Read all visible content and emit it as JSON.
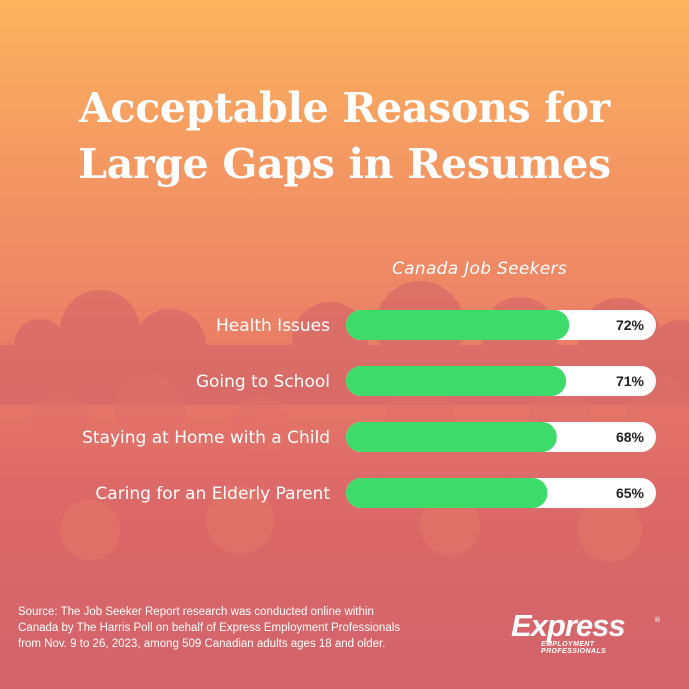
{
  "title_line1": "Acceptable Reasons for",
  "title_line2": "Large Gaps in Resumes",
  "footer": {
    "source_line1": "Source: The Job Seeker Report research was conducted online within",
    "source_line2": "Canada by The Harris Poll on behalf of Express Employment Professionals",
    "source_line3": "from Nov. 9 to 26, 2023, among 509 Canadian adults ages 18 and older.",
    "logo_text": "Express",
    "logo_subtext": "EMPLOYMENT PROFESSIONALS",
    "logo_mark": "®"
  },
  "colors": {
    "bar_fill": "#3ddc6a",
    "bar_track": "#ffffff",
    "label_text": "#ffffff",
    "value_text": "#222222"
  },
  "chart_data": {
    "type": "bar",
    "orientation": "horizontal",
    "series": [
      {
        "name": "Canada Job Seekers",
        "values": [
          72,
          71,
          68,
          65
        ]
      }
    ],
    "categories": [
      "Health Issues",
      "Going to School",
      "Staying at Home with a Child",
      "Caring for an Elderly Parent"
    ],
    "value_labels": [
      "72%",
      "71%",
      "68%",
      "65%"
    ],
    "xlim": [
      0,
      100
    ],
    "grid": false
  }
}
